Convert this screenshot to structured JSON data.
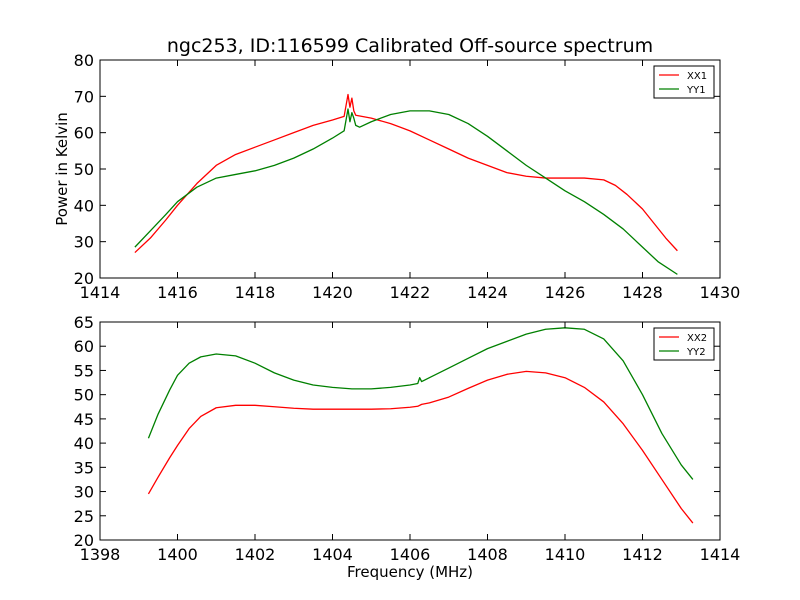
{
  "chart_data": [
    {
      "type": "line",
      "title": "ngc253, ID:116599 Calibrated Off-source spectrum",
      "xlabel": "",
      "ylabel": "Power in Kelvin",
      "xlim": [
        1414,
        1430
      ],
      "ylim": [
        20,
        80
      ],
      "xticks": [
        1414,
        1416,
        1418,
        1420,
        1422,
        1424,
        1426,
        1428,
        1430
      ],
      "yticks": [
        20,
        30,
        40,
        50,
        60,
        70,
        80
      ],
      "legend": "top-right",
      "series": [
        {
          "name": "XX1",
          "color": "#ff0000",
          "x": [
            1414.9,
            1415.3,
            1415.7,
            1416.0,
            1416.5,
            1417.0,
            1417.5,
            1418.0,
            1418.5,
            1419.0,
            1419.5,
            1420.0,
            1420.3,
            1420.4,
            1420.45,
            1420.5,
            1420.55,
            1420.6,
            1421.0,
            1421.5,
            1422.0,
            1422.5,
            1423.0,
            1423.5,
            1424.0,
            1424.5,
            1425.0,
            1425.5,
            1426.0,
            1426.5,
            1427.0,
            1427.3,
            1427.6,
            1428.0,
            1428.3,
            1428.6,
            1428.9
          ],
          "y": [
            27,
            31,
            36,
            40,
            46,
            51,
            54,
            56,
            58,
            60,
            62,
            63.5,
            64.5,
            70.5,
            67,
            69.5,
            66,
            64.8,
            64,
            62.5,
            60.5,
            58,
            55.5,
            53,
            51,
            49,
            48,
            47.5,
            47.5,
            47.5,
            47,
            45.5,
            43,
            39,
            35,
            31,
            27.5
          ]
        },
        {
          "name": "YY1",
          "color": "#008000",
          "x": [
            1414.9,
            1415.3,
            1415.7,
            1416.0,
            1416.5,
            1417.0,
            1417.5,
            1418.0,
            1418.5,
            1419.0,
            1419.5,
            1420.0,
            1420.3,
            1420.4,
            1420.45,
            1420.5,
            1420.55,
            1420.6,
            1420.7,
            1421.0,
            1421.5,
            1422.0,
            1422.5,
            1423.0,
            1423.5,
            1424.0,
            1424.5,
            1425.0,
            1425.5,
            1426.0,
            1426.5,
            1427.0,
            1427.5,
            1428.0,
            1428.4,
            1428.9
          ],
          "y": [
            28.5,
            33,
            37.5,
            41,
            45,
            47.5,
            48.5,
            49.5,
            51,
            53,
            55.5,
            58.5,
            60.5,
            66.5,
            63,
            65.5,
            64,
            62,
            61.5,
            63,
            65,
            66,
            66,
            65,
            62.5,
            59,
            55,
            51,
            47.5,
            44,
            41,
            37.5,
            33.5,
            28.5,
            24.5,
            21
          ]
        }
      ]
    },
    {
      "type": "line",
      "title": "",
      "xlabel": "Frequency (MHz)",
      "ylabel": "",
      "xlim": [
        1398,
        1414
      ],
      "ylim": [
        20,
        65
      ],
      "xticks": [
        1398,
        1400,
        1402,
        1404,
        1406,
        1408,
        1410,
        1412,
        1414
      ],
      "yticks": [
        20,
        25,
        30,
        35,
        40,
        45,
        50,
        55,
        60,
        65
      ],
      "legend": "top-right",
      "series": [
        {
          "name": "XX2",
          "color": "#ff0000",
          "x": [
            1399.25,
            1399.5,
            1399.8,
            1400.0,
            1400.3,
            1400.6,
            1401.0,
            1401.5,
            1402.0,
            1402.5,
            1403.0,
            1403.5,
            1404.0,
            1404.5,
            1405.0,
            1405.5,
            1406.0,
            1406.2,
            1406.3,
            1406.5,
            1407.0,
            1407.5,
            1408.0,
            1408.5,
            1409.0,
            1409.5,
            1410.0,
            1410.5,
            1411.0,
            1411.5,
            1412.0,
            1412.5,
            1413.0,
            1413.3
          ],
          "y": [
            29.5,
            33,
            37,
            39.5,
            43,
            45.5,
            47.3,
            47.8,
            47.8,
            47.5,
            47.2,
            47,
            47,
            47,
            47,
            47.1,
            47.4,
            47.6,
            48,
            48.3,
            49.5,
            51.3,
            53,
            54.2,
            54.8,
            54.5,
            53.5,
            51.5,
            48.5,
            44,
            38.5,
            32.5,
            26.5,
            23.5
          ]
        },
        {
          "name": "YY2",
          "color": "#008000",
          "x": [
            1399.25,
            1399.5,
            1399.8,
            1400.0,
            1400.3,
            1400.6,
            1401.0,
            1401.5,
            1402.0,
            1402.5,
            1403.0,
            1403.5,
            1404.0,
            1404.5,
            1405.0,
            1405.5,
            1406.0,
            1406.2,
            1406.25,
            1406.3,
            1406.5,
            1407.0,
            1407.5,
            1408.0,
            1408.5,
            1409.0,
            1409.5,
            1410.0,
            1410.5,
            1411.0,
            1411.5,
            1412.0,
            1412.5,
            1413.0,
            1413.3
          ],
          "y": [
            41,
            46,
            51,
            54,
            56.5,
            57.8,
            58.4,
            58,
            56.5,
            54.5,
            53,
            52,
            51.5,
            51.2,
            51.2,
            51.5,
            52,
            52.3,
            53.5,
            52.7,
            53.5,
            55.5,
            57.5,
            59.5,
            61,
            62.5,
            63.5,
            63.8,
            63.5,
            61.5,
            57,
            50,
            42,
            35.5,
            32.5
          ]
        }
      ]
    }
  ]
}
